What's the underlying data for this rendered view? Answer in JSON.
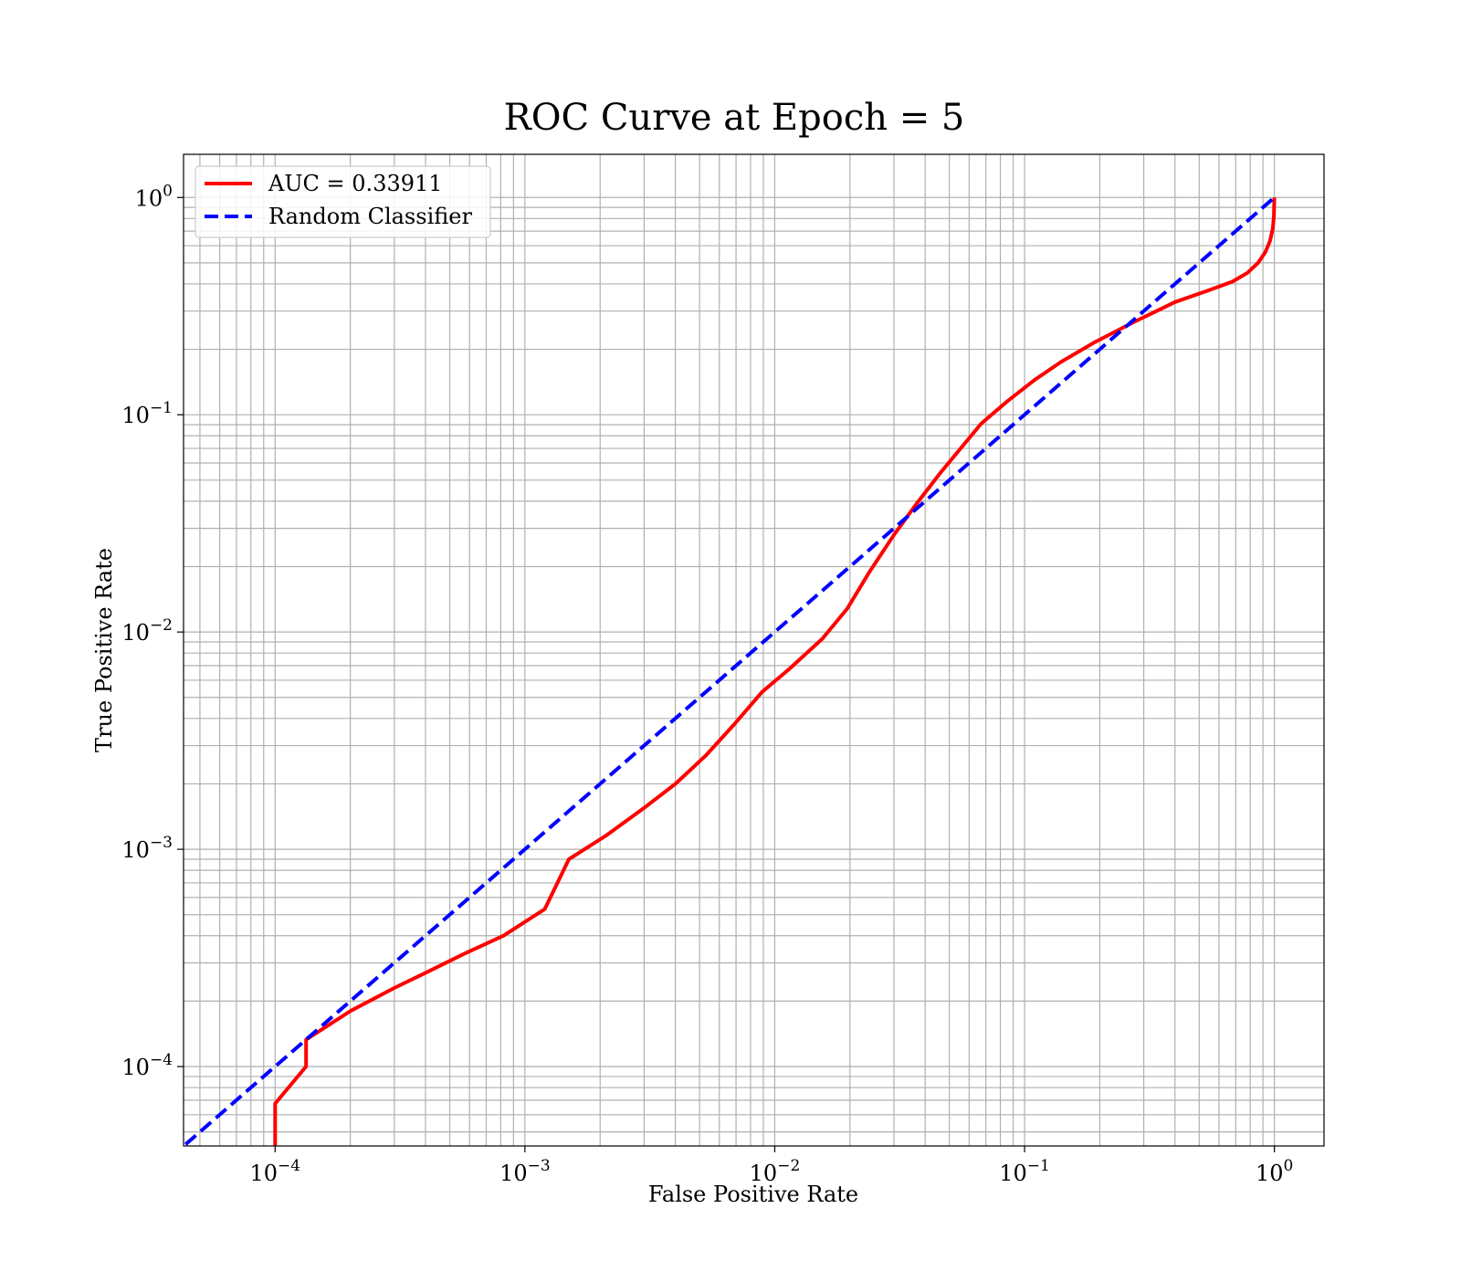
{
  "chart_data": {
    "type": "line",
    "title": "ROC Curve at Epoch = 5",
    "xlabel": "False Positive Rate",
    "ylabel": "True Positive Rate",
    "xscale": "log",
    "yscale": "log",
    "xlim": [
      4.3e-05,
      1.58
    ],
    "ylim": [
      4.31e-05,
      1.58
    ],
    "grid": "on",
    "legend_position": "top-left",
    "x_tick_labels": [
      {
        "value": 0.0001,
        "base": "10",
        "exp": "−4"
      },
      {
        "value": 0.001,
        "base": "10",
        "exp": "−3"
      },
      {
        "value": 0.01,
        "base": "10",
        "exp": "−2"
      },
      {
        "value": 0.1,
        "base": "10",
        "exp": "−1"
      },
      {
        "value": 1,
        "base": "10",
        "exp": "0"
      }
    ],
    "y_tick_labels": [
      {
        "value": 0.0001,
        "base": "10",
        "exp": "−4"
      },
      {
        "value": 0.001,
        "base": "10",
        "exp": "−3"
      },
      {
        "value": 0.01,
        "base": "10",
        "exp": "−2"
      },
      {
        "value": 0.1,
        "base": "10",
        "exp": "−1"
      },
      {
        "value": 1,
        "base": "10",
        "exp": "0"
      }
    ],
    "series": [
      {
        "name": "AUC = 0.33911",
        "color": "#ff0000",
        "style": "solid",
        "points": [
          [
            0.0001,
            4.31e-05
          ],
          [
            0.0001,
            6.75e-05
          ],
          [
            0.000133,
            0.0001
          ],
          [
            0.000133,
            0.000133
          ],
          [
            0.0002,
            0.00018
          ],
          [
            0.0003,
            0.00023
          ],
          [
            0.0004,
            0.00027
          ],
          [
            0.00057,
            0.00033
          ],
          [
            0.00082,
            0.0004
          ],
          [
            0.0012,
            0.00053
          ],
          [
            0.0015,
            0.0009
          ],
          [
            0.0021,
            0.00115
          ],
          [
            0.003,
            0.00155
          ],
          [
            0.004,
            0.002
          ],
          [
            0.0053,
            0.0027
          ],
          [
            0.0068,
            0.0037
          ],
          [
            0.0089,
            0.0053
          ],
          [
            0.0115,
            0.0068
          ],
          [
            0.0155,
            0.0093
          ],
          [
            0.0195,
            0.0128
          ],
          [
            0.024,
            0.019
          ],
          [
            0.03,
            0.028
          ],
          [
            0.037,
            0.039
          ],
          [
            0.046,
            0.054
          ],
          [
            0.067,
            0.091
          ],
          [
            0.085,
            0.115
          ],
          [
            0.11,
            0.145
          ],
          [
            0.14,
            0.175
          ],
          [
            0.19,
            0.215
          ],
          [
            0.27,
            0.265
          ],
          [
            0.4,
            0.33
          ],
          [
            0.55,
            0.375
          ],
          [
            0.68,
            0.41
          ],
          [
            0.78,
            0.45
          ],
          [
            0.86,
            0.5
          ],
          [
            0.92,
            0.56
          ],
          [
            0.96,
            0.63
          ],
          [
            0.985,
            0.72
          ],
          [
            0.995,
            0.82
          ],
          [
            1.0,
            1.0
          ]
        ]
      },
      {
        "name": "Random Classifier",
        "color": "#0000ff",
        "style": "dashed",
        "points": [
          [
            4.38e-05,
            4.38e-05
          ],
          [
            1.0,
            1.0
          ]
        ]
      }
    ]
  }
}
